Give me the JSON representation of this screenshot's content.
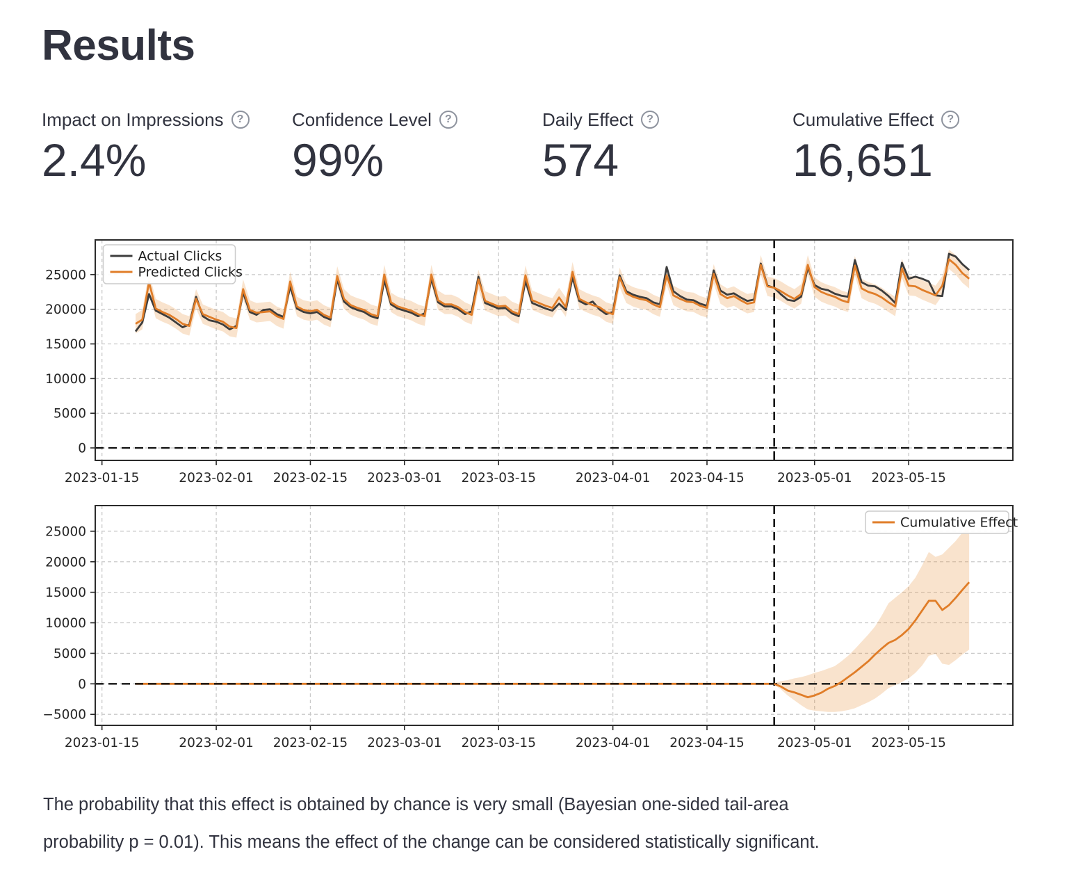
{
  "page": {
    "title": "Results",
    "help_glyph": "?",
    "text_color": "#31333F",
    "background": "#ffffff"
  },
  "metrics": {
    "items": [
      {
        "label": "Impact on Impressions",
        "value": "2.4%"
      },
      {
        "label": "Confidence Level",
        "value": "99%"
      },
      {
        "label": "Daily Effect",
        "value": "574"
      },
      {
        "label": "Cumulative Effect",
        "value": "16,651"
      }
    ]
  },
  "footer": {
    "lines": [
      "The probability that this effect is obtained by chance is very small (Bayesian one-sided tail-area",
      "probability p = 0.01). This means the effect of the change can be considered statistically significant."
    ]
  },
  "chart_data": [
    {
      "type": "line",
      "title": "",
      "start_date": "2023-01-20",
      "x_tick_labels": [
        "2023-01-15",
        "2023-02-01",
        "2023-02-15",
        "2023-03-01",
        "2023-03-15",
        "2023-04-01",
        "2023-04-15",
        "2023-05-01",
        "2023-05-15"
      ],
      "y_ticks": [
        0,
        5000,
        10000,
        15000,
        20000,
        25000
      ],
      "ylim": [
        -1800,
        30000
      ],
      "xlim_days_from_2023_01_15": [
        -1,
        135.5
      ],
      "intervention_date": "2023-04-25",
      "zero_line": true,
      "grid": true,
      "legend_position": "top-left",
      "series": [
        {
          "name": "Actual Clicks",
          "color": "#3d3d3d",
          "values": [
            16800,
            18100,
            22200,
            19800,
            19300,
            18800,
            18100,
            17400,
            17800,
            21800,
            19000,
            18400,
            18200,
            17800,
            17100,
            17600,
            22400,
            19600,
            19200,
            19900,
            20000,
            19300,
            18900,
            23300,
            20100,
            19600,
            19400,
            19600,
            18900,
            18500,
            24300,
            21100,
            20300,
            19900,
            19600,
            19000,
            18700,
            24200,
            20700,
            20100,
            19800,
            19500,
            19000,
            19400,
            24400,
            21000,
            20400,
            20400,
            20000,
            19300,
            19700,
            24700,
            20900,
            20500,
            20100,
            20200,
            19400,
            19000,
            24100,
            20900,
            20500,
            20100,
            19800,
            20800,
            19900,
            24600,
            21200,
            20700,
            21100,
            20000,
            19300,
            19600,
            24900,
            22600,
            22100,
            21800,
            21600,
            21000,
            20700,
            26100,
            22600,
            21900,
            21400,
            21300,
            20800,
            20500,
            25600,
            22700,
            22100,
            22300,
            21700,
            21200,
            21400,
            26600,
            23400,
            23100,
            22150,
            21350,
            21200,
            21800,
            26000,
            23500,
            22950,
            22750,
            22250,
            21950,
            21800,
            27100,
            23900,
            23400,
            23300,
            22700,
            21900,
            20900,
            26700,
            24400,
            24700,
            24400,
            24000,
            22000,
            21900,
            28000,
            27600,
            26500,
            25651
          ]
        },
        {
          "name": "Predicted Clicks",
          "color": "#e07d28",
          "band_half_width": 1400,
          "band_color": "rgba(231,152,70,0.27)",
          "values": [
            17900,
            18500,
            23900,
            20100,
            19600,
            19200,
            18600,
            17900,
            17600,
            21500,
            19300,
            18900,
            18500,
            18200,
            17500,
            17300,
            22900,
            19900,
            19500,
            19600,
            19700,
            19000,
            18600,
            24000,
            20400,
            19900,
            19700,
            19900,
            19200,
            18800,
            24800,
            21500,
            20600,
            20200,
            19900,
            19300,
            19000,
            25000,
            21000,
            20400,
            20100,
            19800,
            19300,
            19000,
            25000,
            21300,
            20700,
            20700,
            20300,
            19600,
            19200,
            24300,
            21200,
            20800,
            20400,
            20500,
            19700,
            19300,
            24900,
            21300,
            20900,
            20500,
            20200,
            21700,
            20300,
            25400,
            21500,
            21000,
            20600,
            20300,
            19600,
            19300,
            24600,
            22300,
            21800,
            21500,
            21300,
            20700,
            20300,
            24900,
            22000,
            21500,
            21100,
            21000,
            20500,
            20200,
            25100,
            22200,
            21600,
            21900,
            21300,
            20800,
            21000,
            26400,
            23300,
            23100,
            22600,
            22000,
            21500,
            22200,
            26400,
            23200,
            22500,
            22100,
            21800,
            21300,
            21000,
            26300,
            23000,
            22500,
            22200,
            21700,
            21000,
            20400,
            25900,
            23400,
            23300,
            22800,
            22400,
            22000,
            23400,
            27200,
            26400,
            25200,
            24400
          ]
        }
      ]
    },
    {
      "type": "line",
      "title": "",
      "start_date": "2023-04-25",
      "pre_zero_from": "2023-01-20",
      "x_tick_labels": [
        "2023-01-15",
        "2023-02-01",
        "2023-02-15",
        "2023-03-01",
        "2023-03-15",
        "2023-04-01",
        "2023-04-15",
        "2023-05-01",
        "2023-05-15"
      ],
      "y_ticks": [
        -5000,
        0,
        5000,
        10000,
        15000,
        20000,
        25000
      ],
      "ylim": [
        -6800,
        29200
      ],
      "xlim_days_from_2023_01_15": [
        -1,
        135.5
      ],
      "intervention_date": "2023-04-25",
      "zero_line": true,
      "grid": true,
      "legend_position": "top-right",
      "series": [
        {
          "name": "Cumulative Effect",
          "color": "#e07d28",
          "band_color": "rgba(231,152,70,0.27)",
          "values": [
            0,
            -450,
            -1100,
            -1400,
            -1800,
            -2200,
            -1900,
            -1450,
            -800,
            -350,
            300,
            1100,
            1900,
            2800,
            3700,
            4800,
            5800,
            6700,
            7200,
            8000,
            9000,
            10400,
            12000,
            13600,
            13600,
            12100,
            12900,
            14100,
            15400,
            16651
          ],
          "lower": [
            -150,
            -900,
            -1900,
            -2700,
            -3500,
            -4200,
            -4400,
            -4500,
            -4600,
            -4600,
            -4500,
            -4300,
            -4000,
            -3500,
            -3000,
            -2400,
            -1600,
            -700,
            -200,
            300,
            900,
            1800,
            3000,
            4600,
            4900,
            3300,
            3100,
            3900,
            4800,
            5600
          ],
          "upper": [
            150,
            450,
            600,
            900,
            1100,
            1400,
            1800,
            2100,
            2500,
            2900,
            3700,
            4600,
            5700,
            6900,
            8100,
            9400,
            11200,
            13200,
            14100,
            15000,
            16000,
            17400,
            19400,
            21600,
            20800,
            21200,
            22300,
            23400,
            24800,
            26000
          ]
        }
      ]
    }
  ]
}
